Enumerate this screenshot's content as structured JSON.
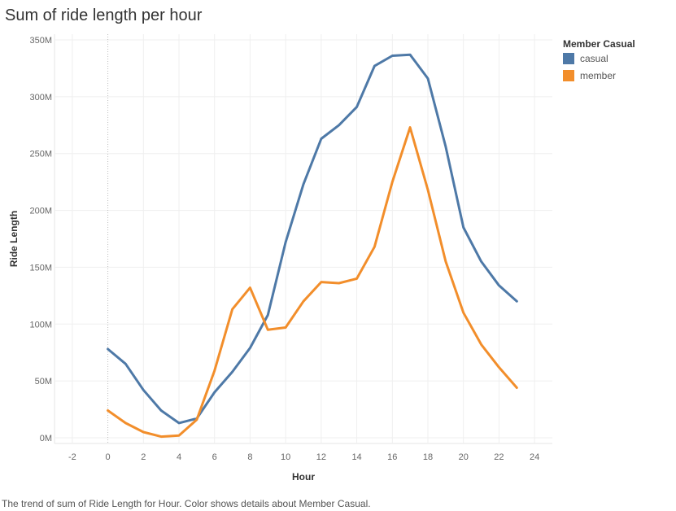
{
  "title": "Sum of ride length per hour",
  "caption": "The trend of sum of Ride Length for Hour.  Color shows details about Member Casual.",
  "legend": {
    "title": "Member Casual",
    "items": [
      {
        "label": "casual",
        "color": "#4e79a7"
      },
      {
        "label": "member",
        "color": "#f28e2b"
      }
    ]
  },
  "chart_data": {
    "type": "line",
    "title": "Sum of ride length per hour",
    "xlabel": "Hour",
    "ylabel": "Ride Length",
    "xlim": [
      -3,
      25
    ],
    "ylim": [
      -5,
      355
    ],
    "x_ticks": [
      -2,
      0,
      2,
      4,
      6,
      8,
      10,
      12,
      14,
      16,
      18,
      20,
      22,
      24
    ],
    "y_ticks": [
      0,
      50,
      100,
      150,
      200,
      250,
      300,
      350
    ],
    "y_tick_labels": [
      "0M",
      "50M",
      "100M",
      "150M",
      "200M",
      "250M",
      "300M",
      "350M"
    ],
    "y_unit": "millions",
    "grid": true,
    "legend_position": "top-right",
    "x": [
      0,
      1,
      2,
      3,
      4,
      5,
      6,
      7,
      8,
      9,
      10,
      11,
      12,
      13,
      14,
      15,
      16,
      17,
      18,
      19,
      20,
      21,
      22,
      23
    ],
    "series": [
      {
        "name": "casual",
        "color": "#4e79a7",
        "values": [
          78,
          65,
          42,
          24,
          13,
          17,
          40,
          58,
          79,
          108,
          172,
          223,
          263,
          275,
          291,
          327,
          336,
          337,
          316,
          256,
          185,
          155,
          134,
          120
        ]
      },
      {
        "name": "member",
        "color": "#f28e2b",
        "values": [
          24,
          13,
          5,
          1,
          2,
          16,
          59,
          113,
          132,
          95,
          97,
          120,
          137,
          136,
          140,
          168,
          225,
          273,
          218,
          155,
          110,
          82,
          62,
          44
        ]
      }
    ]
  }
}
